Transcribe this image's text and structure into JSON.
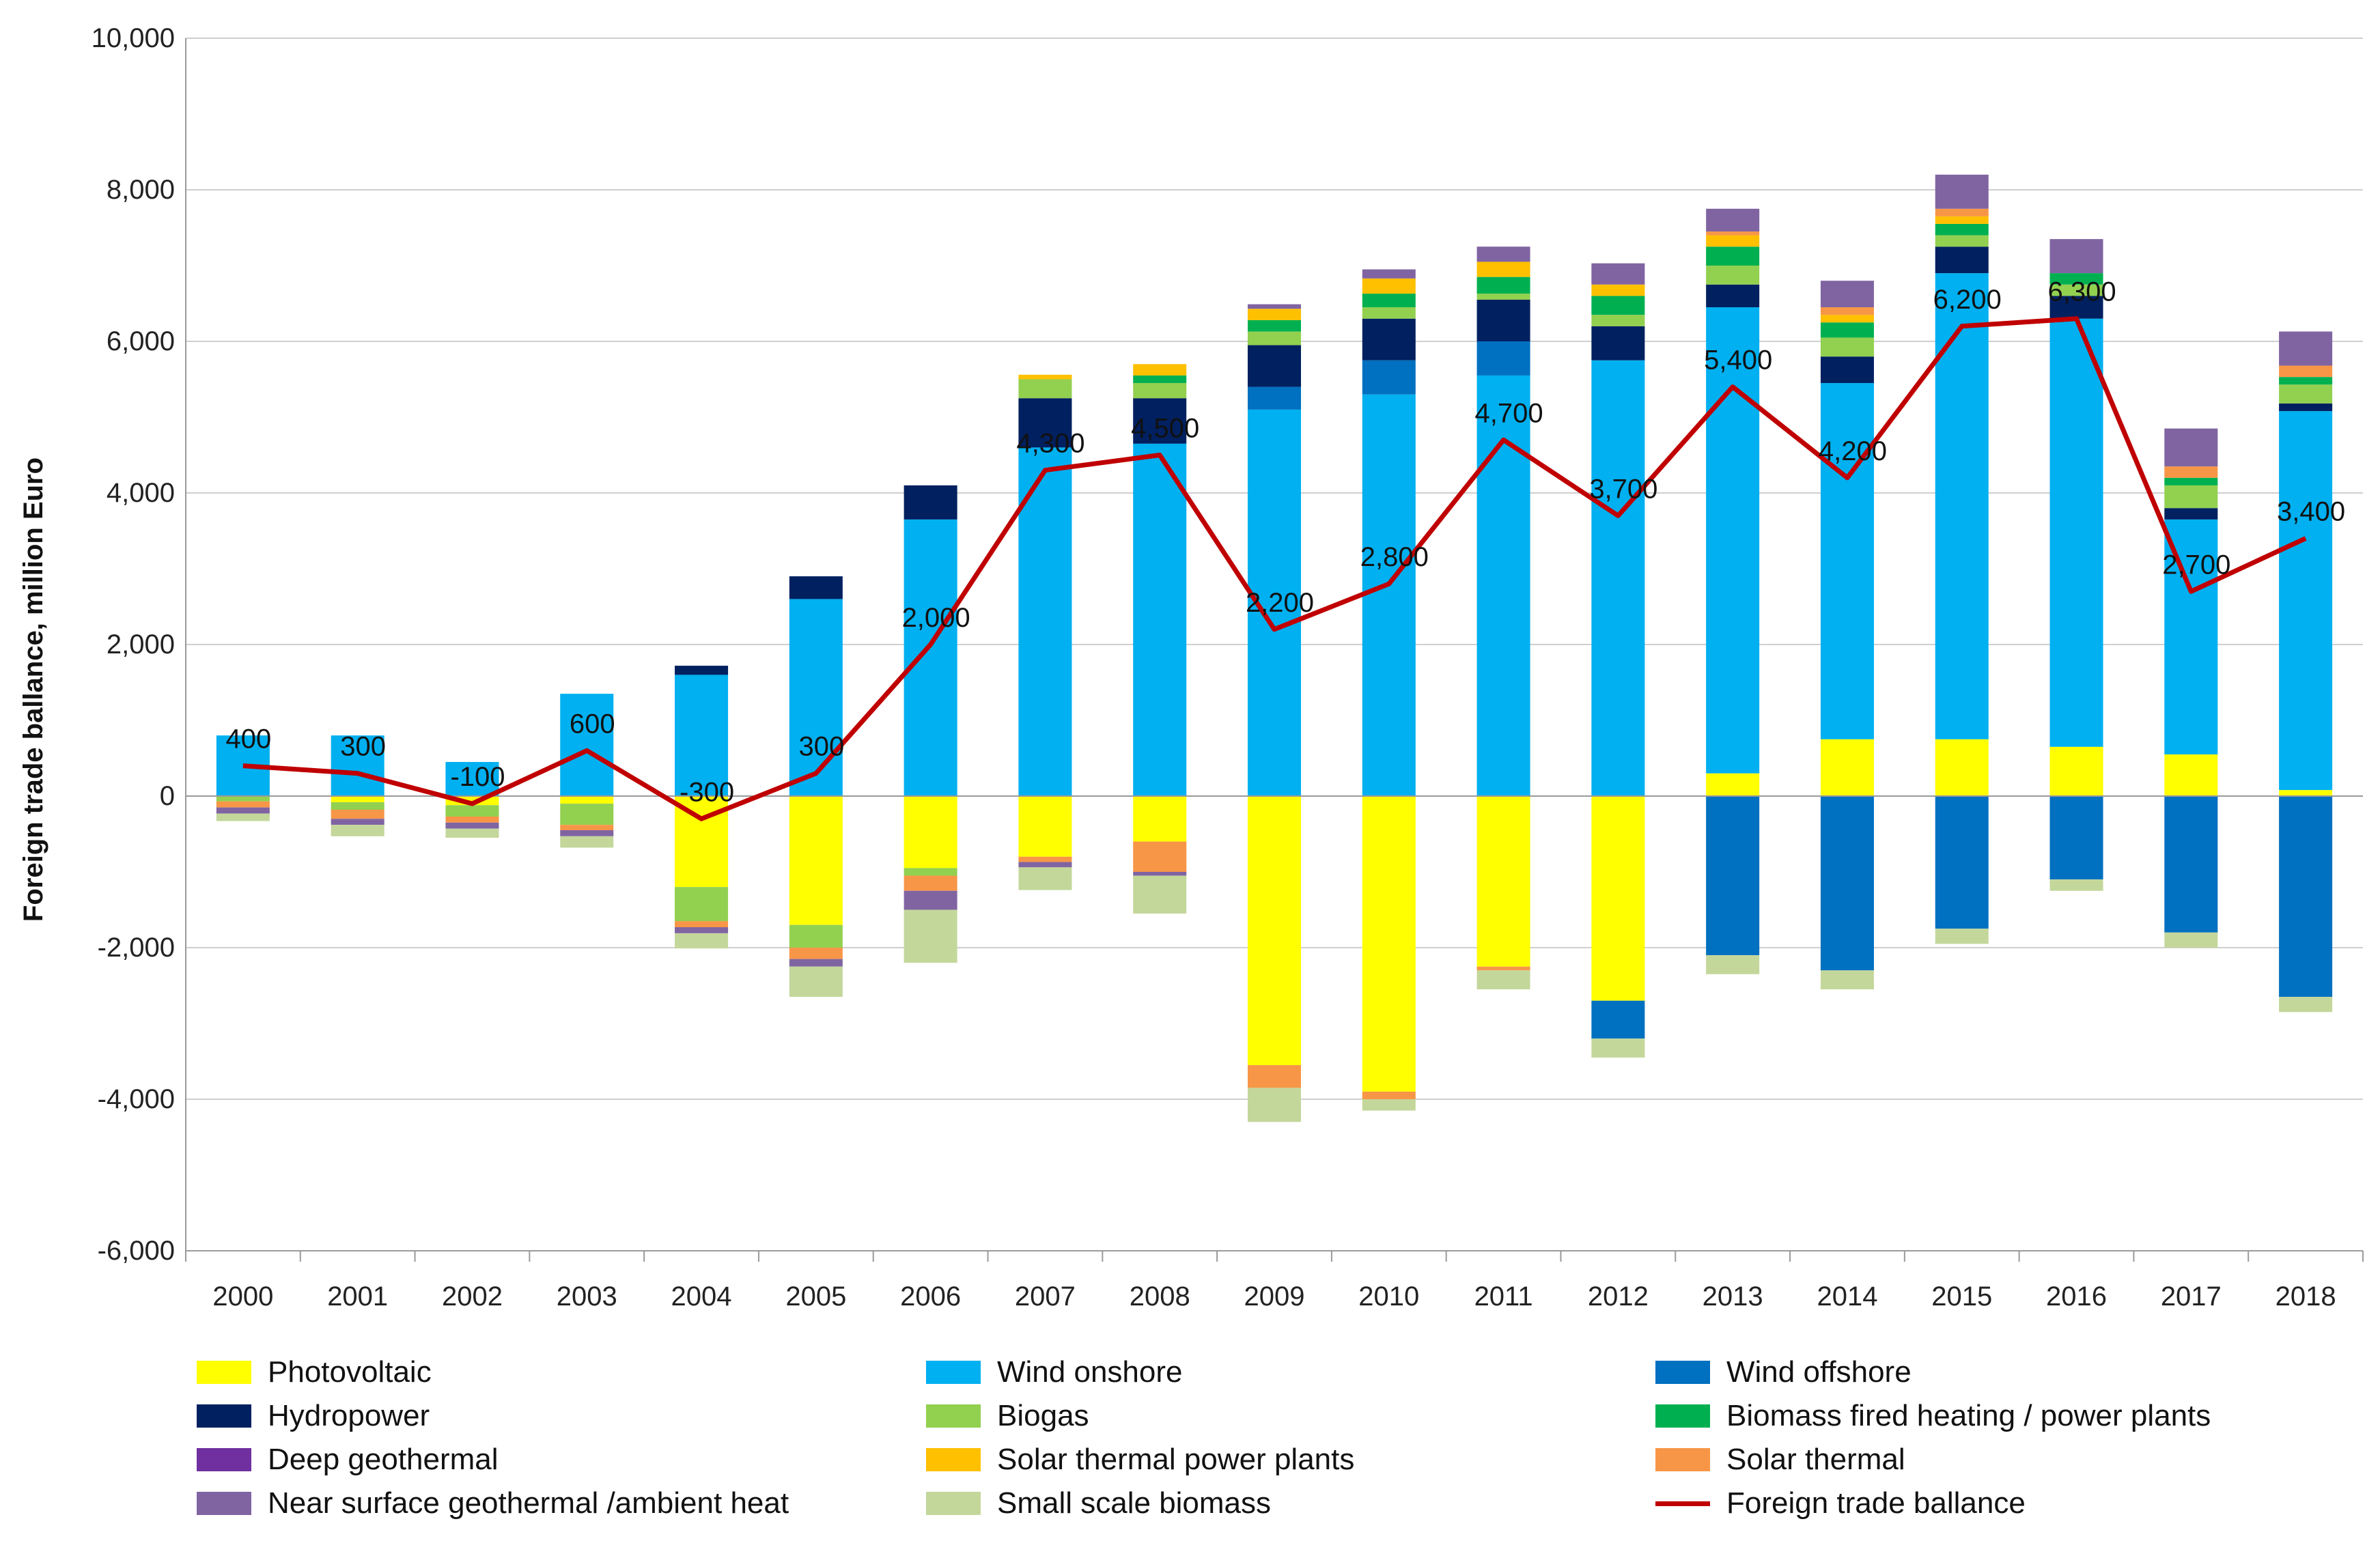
{
  "chart_data": {
    "type": "bar",
    "stacked": true,
    "title": "",
    "xlabel": "",
    "ylabel": "Foreign trade ballance, million Euro",
    "ylim": [
      -6000,
      10000
    ],
    "yticks": [
      10000,
      8000,
      6000,
      4000,
      2000,
      0,
      -2000,
      -4000,
      -6000
    ],
    "ytick_labels": [
      "10,000",
      "8,000",
      "6,000",
      "4,000",
      "2,000",
      "0",
      "-2,000",
      "-4,000",
      "-6,000"
    ],
    "categories": [
      "2000",
      "2001",
      "2002",
      "2003",
      "2004",
      "2005",
      "2006",
      "2007",
      "2008",
      "2009",
      "2010",
      "2011",
      "2012",
      "2013",
      "2014",
      "2015",
      "2016",
      "2017",
      "2018"
    ],
    "grid": true,
    "legend_position": "bottom",
    "series": [
      {
        "name": "Photovoltaic",
        "color": "#FFFF00",
        "values": [
          0,
          -80,
          -120,
          -100,
          -1200,
          -1700,
          -950,
          -800,
          -600,
          -3550,
          -3900,
          -2250,
          -2700,
          300,
          750,
          750,
          650,
          550,
          80
        ]
      },
      {
        "name": "Wind onshore",
        "color": "#00B0F0",
        "values": [
          800,
          800,
          450,
          1350,
          1600,
          2600,
          3650,
          4600,
          4650,
          5100,
          5300,
          5550,
          5750,
          6150,
          4700,
          6150,
          5650,
          3100,
          5000
        ]
      },
      {
        "name": "Wind offshore",
        "color": "#0070C0",
        "values": [
          0,
          0,
          0,
          0,
          0,
          0,
          0,
          0,
          0,
          300,
          450,
          450,
          -500,
          -2100,
          -2300,
          -1750,
          -1100,
          -1800,
          -2650
        ]
      },
      {
        "name": "Hydropower",
        "color": "#002060",
        "values": [
          0,
          0,
          0,
          0,
          120,
          300,
          450,
          650,
          600,
          550,
          550,
          550,
          450,
          300,
          350,
          350,
          300,
          150,
          100
        ]
      },
      {
        "name": "Biogas",
        "color": "#92D050",
        "values": [
          -70,
          -100,
          -150,
          -280,
          -450,
          -300,
          -100,
          250,
          200,
          180,
          150,
          80,
          150,
          250,
          250,
          150,
          150,
          300,
          250
        ]
      },
      {
        "name": "Biomass fired heating / power plants",
        "color": "#00B050",
        "values": [
          0,
          0,
          0,
          0,
          0,
          0,
          0,
          0,
          100,
          150,
          180,
          220,
          250,
          250,
          200,
          150,
          150,
          100,
          100
        ]
      },
      {
        "name": "Deep geothermal",
        "color": "#7030A0",
        "values": [
          0,
          0,
          0,
          0,
          0,
          0,
          0,
          0,
          0,
          0,
          0,
          0,
          0,
          0,
          0,
          0,
          0,
          0,
          0
        ]
      },
      {
        "name": "Solar thermal power plants",
        "color": "#FFC000",
        "values": [
          0,
          0,
          0,
          0,
          0,
          0,
          0,
          60,
          150,
          150,
          200,
          200,
          150,
          150,
          100,
          100,
          0,
          0,
          0
        ]
      },
      {
        "name": "Solar thermal",
        "color": "#F79646",
        "values": [
          -80,
          -120,
          -80,
          -70,
          -80,
          -150,
          -200,
          -70,
          -400,
          -300,
          -100,
          -50,
          0,
          50,
          100,
          100,
          0,
          150,
          150
        ]
      },
      {
        "name": "Near surface geothermal /ambient heat",
        "color": "#8064A2",
        "values": [
          -80,
          -80,
          -80,
          -80,
          -80,
          -100,
          -250,
          -70,
          -50,
          60,
          120,
          200,
          280,
          300,
          350,
          450,
          450,
          500,
          450
        ]
      },
      {
        "name": "Small scale biomass",
        "color": "#C4D79B",
        "values": [
          -100,
          -150,
          -120,
          -150,
          -200,
          -400,
          -700,
          -300,
          -500,
          -450,
          -150,
          -250,
          -250,
          -250,
          -250,
          -200,
          -150,
          -200,
          -200
        ]
      }
    ],
    "line_series": {
      "name": "Foreign trade ballance",
      "color": "#C00000",
      "values": [
        400,
        300,
        -100,
        600,
        -300,
        300,
        2000,
        4300,
        4500,
        2200,
        2800,
        4700,
        3700,
        5400,
        4200,
        6200,
        6300,
        2700,
        3400
      ],
      "data_labels": [
        "400",
        "300",
        "-100",
        "600",
        "-300",
        "300",
        "2,000",
        "4,300",
        "4,500",
        "2,200",
        "2,800",
        "4,700",
        "3,700",
        "5,400",
        "4,200",
        "6,200",
        "6,300",
        "2,700",
        "3,400"
      ]
    }
  }
}
